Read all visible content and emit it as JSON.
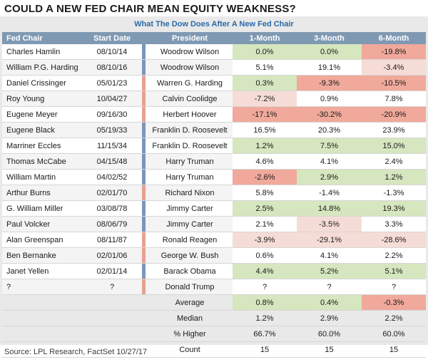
{
  "title": "COULD A NEW FED CHAIR MEAN EQUITY WEAKNESS?",
  "subtitle": "What The Dow Does After A New Fed Chair",
  "headers": {
    "fed_chair": "Fed Chair",
    "start_date": "Start Date",
    "president": "President",
    "m1": "1-Month",
    "m3": "3-Month",
    "m6": "6-Month"
  },
  "colors": {
    "green": "#d6e6bf",
    "pink": "#f6dcd6",
    "red": "#f0a99b",
    "white": "#ffffff",
    "blue_bar": "#7b96ba",
    "red_bar": "#e9a091"
  },
  "rows": [
    {
      "chair": "Charles Hamlin",
      "date": "08/10/14",
      "party": "D",
      "president": "Woodrow Wilson",
      "m1": "0.0%",
      "m3": "0.0%",
      "m6": "-19.8%"
    },
    {
      "chair": "William P.G. Harding",
      "date": "08/10/16",
      "party": "D",
      "president": "Woodrow Wilson",
      "m1": "5.1%",
      "m3": "19.1%",
      "m6": "-3.4%"
    },
    {
      "chair": "Daniel Crissinger",
      "date": "05/01/23",
      "party": "R",
      "president": "Warren G. Harding",
      "m1": "0.3%",
      "m3": "-9.3%",
      "m6": "-10.5%"
    },
    {
      "chair": "Roy Young",
      "date": "10/04/27",
      "party": "R",
      "president": "Calvin Coolidge",
      "m1": "-7.2%",
      "m3": "0.9%",
      "m6": "7.8%"
    },
    {
      "chair": "Eugene Meyer",
      "date": "09/16/30",
      "party": "R",
      "president": "Herbert Hoover",
      "m1": "-17.1%",
      "m3": "-30.2%",
      "m6": "-20.9%"
    },
    {
      "chair": "Eugene Black",
      "date": "05/19/33",
      "party": "D",
      "president": "Franklin D. Roosevelt",
      "m1": "16.5%",
      "m3": "20.3%",
      "m6": "23.9%"
    },
    {
      "chair": "Marriner Eccles",
      "date": "11/15/34",
      "party": "D",
      "president": "Franklin D. Roosevelt",
      "m1": "1.2%",
      "m3": "7.5%",
      "m6": "15.0%"
    },
    {
      "chair": "Thomas McCabe",
      "date": "04/15/48",
      "party": "D",
      "president": "Harry Truman",
      "m1": "4.6%",
      "m3": "4.1%",
      "m6": "2.4%"
    },
    {
      "chair": "William Martin",
      "date": "04/02/52",
      "party": "D",
      "president": "Harry Truman",
      "m1": "-2.6%",
      "m3": "2.9%",
      "m6": "1.2%"
    },
    {
      "chair": "Arthur Burns",
      "date": "02/01/70",
      "party": "R",
      "president": "Richard Nixon",
      "m1": "5.8%",
      "m3": "-1.4%",
      "m6": "-1.3%"
    },
    {
      "chair": "G. William Miller",
      "date": "03/08/78",
      "party": "D",
      "president": "Jimmy Carter",
      "m1": "2.5%",
      "m3": "14.8%",
      "m6": "19.3%"
    },
    {
      "chair": "Paul Volcker",
      "date": "08/06/79",
      "party": "D",
      "president": "Jimmy Carter",
      "m1": "2.1%",
      "m3": "-3.5%",
      "m6": "3.3%"
    },
    {
      "chair": "Alan Greenspan",
      "date": "08/11/87",
      "party": "R",
      "president": "Ronald Reagen",
      "m1": "-3.9%",
      "m3": "-29.1%",
      "m6": "-28.6%"
    },
    {
      "chair": "Ben Bernanke",
      "date": "02/01/06",
      "party": "R",
      "president": "George W. Bush",
      "m1": "0.6%",
      "m3": "4.1%",
      "m6": "2.2%"
    },
    {
      "chair": "Janet Yellen",
      "date": "02/01/14",
      "party": "D",
      "president": "Barack Obama",
      "m1": "4.4%",
      "m3": "5.2%",
      "m6": "5.1%"
    },
    {
      "chair": "?",
      "date": "?",
      "party": "R",
      "president": "Donald Trump",
      "m1": "?",
      "m3": "?",
      "m6": "?"
    }
  ],
  "summary": [
    {
      "label": "Average",
      "m1": "0.8%",
      "m3": "0.4%",
      "m6": "-0.3%"
    },
    {
      "label": "Median",
      "m1": "1.2%",
      "m3": "2.9%",
      "m6": "2.2%"
    },
    {
      "label": "% Higher",
      "m1": "66.7%",
      "m3": "60.0%",
      "m6": "60.0%"
    },
    {
      "label": "Count",
      "m1": "15",
      "m3": "15",
      "m6": "15"
    }
  ],
  "source": "Source: LPL Research, FactSet   10/27/17"
}
